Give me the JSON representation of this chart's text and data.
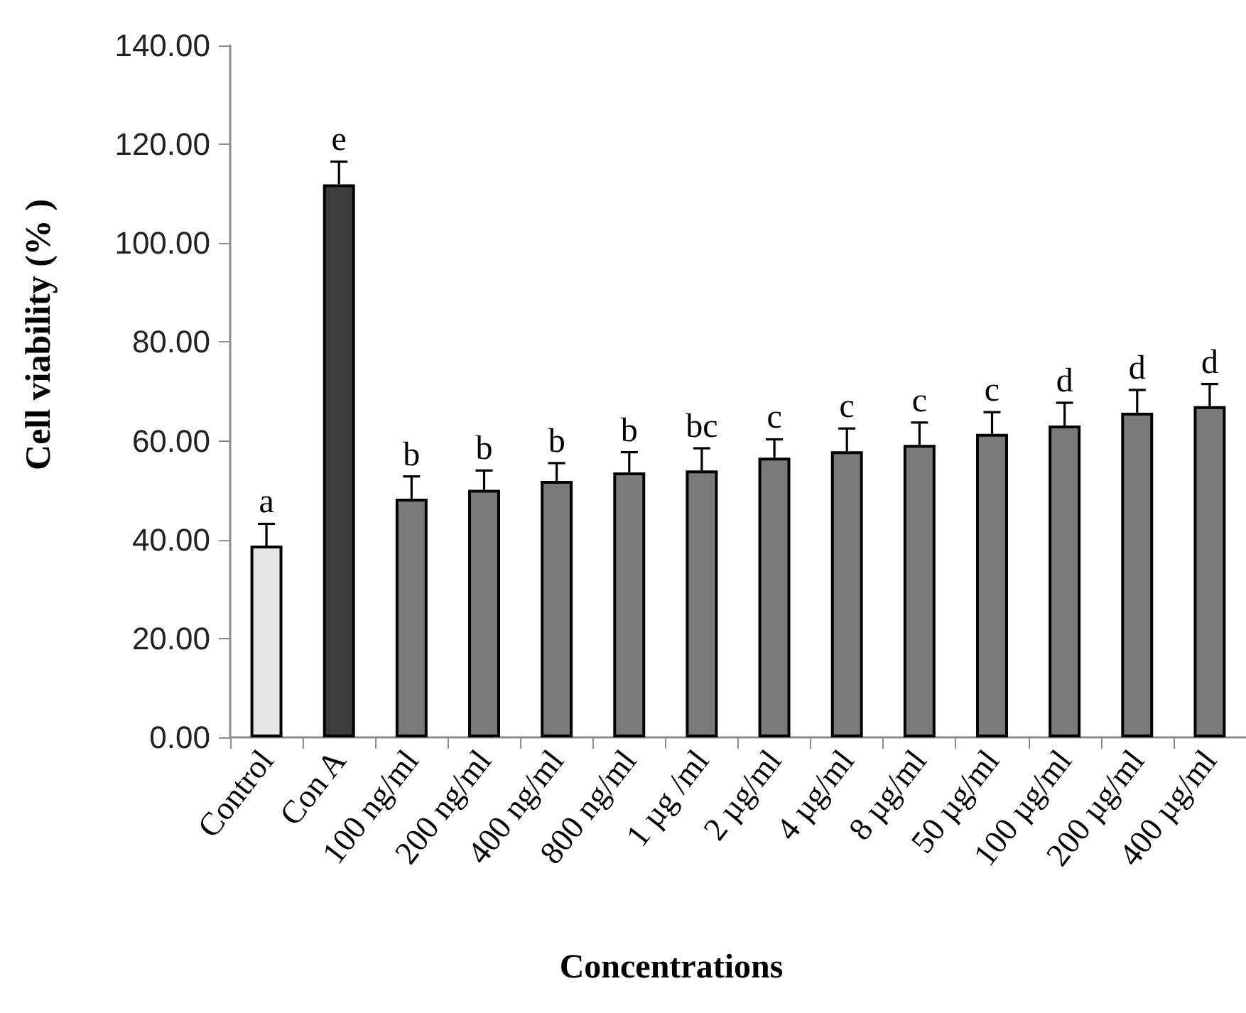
{
  "chart_data": {
    "type": "bar",
    "xlabel": "Concentrations",
    "ylabel": "Cell viability (% )",
    "categories": [
      "Control",
      "Con A",
      "100 ng/ml",
      "200 ng/ml",
      "400 ng/ml",
      "800 ng/ml",
      "1 µg /ml",
      "2 µg/ml",
      "4 µg/ml",
      "8 µg/ml",
      "50 µg/ml",
      "100 µg/ml",
      "200 µg/ml",
      "400 µg/ml"
    ],
    "values": [
      38.8,
      111.9,
      48.3,
      50.1,
      51.9,
      53.6,
      54.0,
      56.6,
      57.9,
      59.2,
      61.4,
      63.1,
      65.7,
      67.0
    ],
    "colors": [
      "#e6e6e6",
      "#3c3c3c",
      "#7a7a7a",
      "#7a7a7a",
      "#7a7a7a",
      "#7a7a7a",
      "#7a7a7a",
      "#7a7a7a",
      "#7a7a7a",
      "#7a7a7a",
      "#7a7a7a",
      "#7a7a7a",
      "#7a7a7a",
      "#7a7a7a"
    ],
    "errors": [
      [
        38.8,
        43.2
      ],
      [
        111.9,
        116.5
      ],
      [
        48.3,
        52.8
      ],
      [
        50.1,
        54.0
      ],
      [
        51.9,
        55.5
      ],
      [
        53.6,
        57.7
      ],
      [
        54.0,
        58.5
      ],
      [
        56.6,
        60.3
      ],
      [
        57.9,
        62.5
      ],
      [
        59.2,
        63.7
      ],
      [
        61.4,
        65.8
      ],
      [
        63.1,
        67.7
      ],
      [
        65.7,
        70.3
      ],
      [
        67.0,
        71.5
      ]
    ],
    "ylim": [
      0,
      140
    ],
    "yticks": [
      {
        "value": 0,
        "label": "0.00"
      },
      {
        "value": 20,
        "label": "20.00"
      },
      {
        "value": 40,
        "label": "40.00"
      },
      {
        "value": 60,
        "label": "60.00"
      },
      {
        "value": 80,
        "label": "80.00"
      },
      {
        "value": 100,
        "label": "100.00"
      },
      {
        "value": 120,
        "label": "120.00"
      },
      {
        "value": 140,
        "label": "140.00"
      }
    ],
    "annotations": [
      {
        "text": "a",
        "x": "Control",
        "y": 43.2
      },
      {
        "text": "e",
        "x": "Con A",
        "y": 116.5
      },
      {
        "text": "b",
        "x": "100 ng/ml",
        "y": 52.8
      },
      {
        "text": "b",
        "x": "200 ng/ml",
        "y": 54.0
      },
      {
        "text": "b",
        "x": "400 ng/ml",
        "y": 55.5
      },
      {
        "text": "b",
        "x": "800 ng/ml",
        "y": 57.7
      },
      {
        "text": "bc",
        "x": "1 µg /ml",
        "y": 58.5
      },
      {
        "text": "c",
        "x": "2 µg/ml",
        "y": 60.3
      },
      {
        "text": "c",
        "x": "4 µg/ml",
        "y": 62.5
      },
      {
        "text": "c",
        "x": "8 µg/ml",
        "y": 63.7
      },
      {
        "text": "c",
        "x": "50 µg/ml",
        "y": 65.8
      },
      {
        "text": "d",
        "x": "100 µg/ml",
        "y": 67.7
      },
      {
        "text": "d",
        "x": "200 µg/ml",
        "y": 70.3
      },
      {
        "text": "d",
        "x": "400 µg/ml",
        "y": 71.5
      }
    ]
  }
}
